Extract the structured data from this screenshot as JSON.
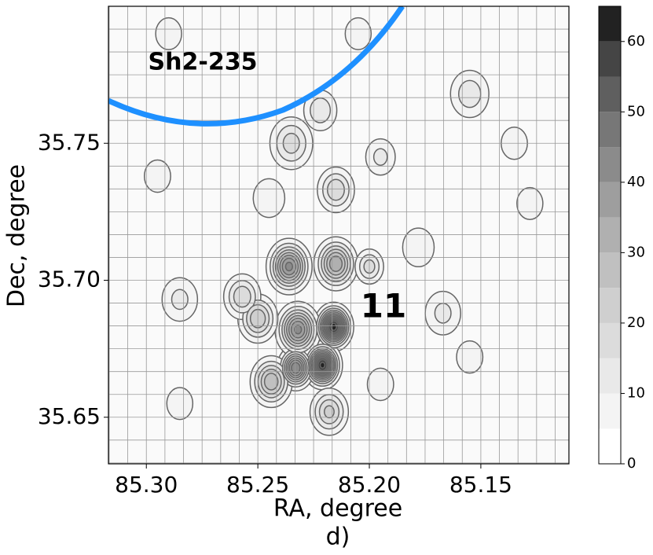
{
  "chart_data": {
    "type": "contour",
    "title": "d)",
    "xlabel": "RA, degree",
    "ylabel": "Dec, degree",
    "annotations": [
      {
        "text": "Sh2-235",
        "color": "#1e90ff"
      },
      {
        "text": "11",
        "color": "#ff0000"
      }
    ],
    "xlim": [
      85.317,
      85.1105
    ],
    "ylim": [
      35.633,
      35.8
    ],
    "xticks": [
      {
        "value": 85.3,
        "label": "85.30"
      },
      85.25,
      {
        "value": 85.2,
        "label": "85.20"
      },
      85.15
    ],
    "yticks": [
      35.65,
      {
        "value": 35.7,
        "label": "35.70"
      },
      35.75
    ],
    "grid": true,
    "levels": [
      0,
      5,
      10,
      15,
      20,
      25,
      30,
      35,
      40,
      45,
      50,
      55,
      60,
      65
    ],
    "colors": [
      "#ffffff",
      "#f4f4f4",
      "#e9e9e9",
      "#dcdcdc",
      "#cfcfcf",
      "#c0c0c0",
      "#b0b0b0",
      "#9e9e9e",
      "#8b8b8b",
      "#777777",
      "#5f5f5f",
      "#454545",
      "#222222"
    ],
    "cticks": [
      0,
      10,
      20,
      30,
      40,
      50,
      60
    ],
    "peaks": [
      {
        "ra": 85.216,
        "dec": 35.683,
        "value": 63,
        "size": 0.004
      },
      {
        "ra": 85.221,
        "dec": 35.669,
        "value": 62,
        "size": 0.004
      },
      {
        "ra": 85.233,
        "dec": 35.668,
        "value": 45,
        "size": 0.004
      },
      {
        "ra": 85.232,
        "dec": 35.682,
        "value": 42,
        "size": 0.005
      },
      {
        "ra": 85.236,
        "dec": 35.705,
        "value": 42,
        "size": 0.005
      },
      {
        "ra": 85.215,
        "dec": 35.706,
        "value": 35,
        "size": 0.005
      },
      {
        "ra": 85.244,
        "dec": 35.663,
        "value": 30,
        "size": 0.005
      },
      {
        "ra": 85.25,
        "dec": 35.686,
        "value": 25,
        "size": 0.005
      },
      {
        "ra": 85.257,
        "dec": 35.694,
        "value": 20,
        "size": 0.005
      },
      {
        "ra": 85.218,
        "dec": 35.652,
        "value": 22,
        "size": 0.005
      },
      {
        "ra": 85.2,
        "dec": 35.705,
        "value": 18,
        "size": 0.004
      },
      {
        "ra": 85.285,
        "dec": 35.693,
        "value": 12,
        "size": 0.006
      },
      {
        "ra": 85.235,
        "dec": 35.75,
        "value": 18,
        "size": 0.006
      },
      {
        "ra": 85.222,
        "dec": 35.762,
        "value": 15,
        "size": 0.005
      },
      {
        "ra": 85.215,
        "dec": 35.733,
        "value": 20,
        "size": 0.005
      },
      {
        "ra": 85.195,
        "dec": 35.745,
        "value": 12,
        "size": 0.005
      },
      {
        "ra": 85.178,
        "dec": 35.712,
        "value": 10,
        "size": 0.006
      },
      {
        "ra": 85.167,
        "dec": 35.688,
        "value": 12,
        "size": 0.006
      },
      {
        "ra": 85.155,
        "dec": 35.672,
        "value": 10,
        "size": 0.005
      },
      {
        "ra": 85.155,
        "dec": 35.768,
        "value": 14,
        "size": 0.006
      },
      {
        "ra": 85.135,
        "dec": 35.75,
        "value": 10,
        "size": 0.005
      },
      {
        "ra": 85.295,
        "dec": 35.738,
        "value": 10,
        "size": 0.005
      },
      {
        "ra": 85.29,
        "dec": 35.79,
        "value": 8,
        "size": 0.006
      },
      {
        "ra": 85.205,
        "dec": 35.79,
        "value": 8,
        "size": 0.006
      },
      {
        "ra": 85.195,
        "dec": 35.662,
        "value": 10,
        "size": 0.005
      },
      {
        "ra": 85.245,
        "dec": 35.73,
        "value": 10,
        "size": 0.006
      },
      {
        "ra": 85.128,
        "dec": 35.728,
        "value": 8,
        "size": 0.006
      },
      {
        "ra": 85.285,
        "dec": 35.655,
        "value": 8,
        "size": 0.006
      }
    ]
  }
}
